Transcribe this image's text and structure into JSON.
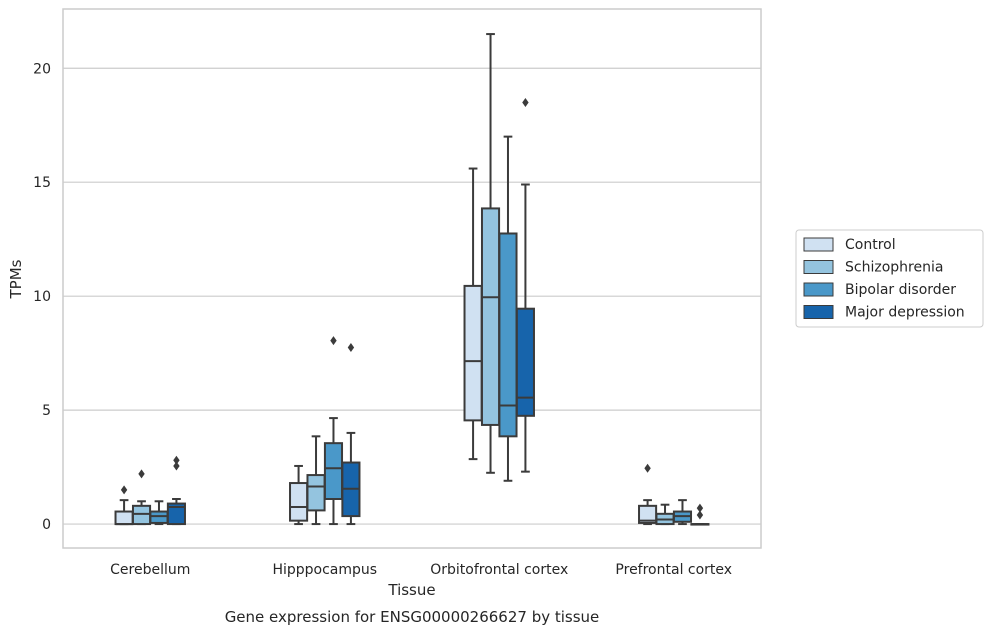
{
  "caption": "Gene expression for ENSG00000266627 by tissue",
  "chart_data": {
    "type": "box",
    "xlabel": "Tissue",
    "ylabel": "TPMs",
    "ylim": [
      -1.05,
      22.6
    ],
    "yticks": [
      0,
      5,
      10,
      15,
      20
    ],
    "grid": true,
    "legend_position": "right",
    "categories": [
      "Cerebellum",
      "Hipppocampus",
      "Orbitofrontal cortex",
      "Prefrontal cortex"
    ],
    "series": [
      {
        "name": "Control",
        "color": "#d0e1f2",
        "boxes": [
          {
            "whisker_low": 0,
            "q1": 0,
            "median": 0,
            "q3": 0.55,
            "whisker_high": 1.05,
            "outliers": [
              1.5
            ]
          },
          {
            "whisker_low": 0,
            "q1": 0.15,
            "median": 0.75,
            "q3": 1.8,
            "whisker_high": 2.55,
            "outliers": []
          },
          {
            "whisker_low": 2.85,
            "q1": 4.55,
            "median": 7.15,
            "q3": 10.45,
            "whisker_high": 15.6,
            "outliers": []
          },
          {
            "whisker_low": 0,
            "q1": 0.05,
            "median": 0.15,
            "q3": 0.8,
            "whisker_high": 1.05,
            "outliers": [
              2.45
            ]
          }
        ]
      },
      {
        "name": "Schizophrenia",
        "color": "#94c4df",
        "boxes": [
          {
            "whisker_low": 0,
            "q1": 0,
            "median": 0.45,
            "q3": 0.8,
            "whisker_high": 1.0,
            "outliers": [
              2.2
            ]
          },
          {
            "whisker_low": 0,
            "q1": 0.6,
            "median": 1.65,
            "q3": 2.15,
            "whisker_high": 3.85,
            "outliers": []
          },
          {
            "whisker_low": 2.25,
            "q1": 4.35,
            "median": 9.95,
            "q3": 13.85,
            "whisker_high": 21.5,
            "outliers": []
          },
          {
            "whisker_low": 0,
            "q1": 0,
            "median": 0.2,
            "q3": 0.45,
            "whisker_high": 0.85,
            "outliers": []
          }
        ]
      },
      {
        "name": "Bipolar disorder",
        "color": "#4a98c9",
        "boxes": [
          {
            "whisker_low": 0,
            "q1": 0.05,
            "median": 0.35,
            "q3": 0.55,
            "whisker_high": 1.0,
            "outliers": []
          },
          {
            "whisker_low": 0,
            "q1": 1.1,
            "median": 2.45,
            "q3": 3.55,
            "whisker_high": 4.65,
            "outliers": [
              8.05
            ]
          },
          {
            "whisker_low": 1.9,
            "q1": 3.85,
            "median": 5.2,
            "q3": 12.75,
            "whisker_high": 17.0,
            "outliers": []
          },
          {
            "whisker_low": 0,
            "q1": 0.1,
            "median": 0.35,
            "q3": 0.55,
            "whisker_high": 1.05,
            "outliers": []
          }
        ]
      },
      {
        "name": "Major depression",
        "color": "#1764ab",
        "boxes": [
          {
            "whisker_low": 0,
            "q1": 0,
            "median": 0.75,
            "q3": 0.9,
            "whisker_high": 1.1,
            "outliers": [
              2.55,
              2.8
            ]
          },
          {
            "whisker_low": 0,
            "q1": 0.35,
            "median": 1.55,
            "q3": 2.7,
            "whisker_high": 4.0,
            "outliers": [
              7.75
            ]
          },
          {
            "whisker_low": 2.3,
            "q1": 4.75,
            "median": 5.55,
            "q3": 9.45,
            "whisker_high": 14.9,
            "outliers": [
              18.5
            ]
          },
          {
            "whisker_low": 0,
            "q1": 0,
            "median": 0,
            "q3": 0,
            "whisker_high": 0,
            "outliers": [
              0.4,
              0.7
            ]
          }
        ]
      }
    ]
  }
}
